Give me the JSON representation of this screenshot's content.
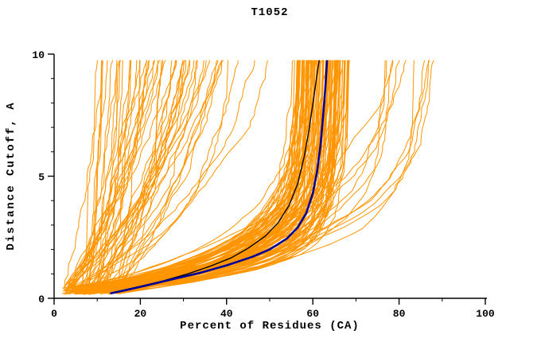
{
  "chart_data": {
    "type": "line",
    "title": "T1052",
    "xlabel": "Percent of Residues (CA)",
    "ylabel": "Distance Cutoff, A",
    "xlim": [
      0,
      100
    ],
    "ylim": [
      0,
      10
    ],
    "grid": false,
    "legend": "none",
    "x_ticks": {
      "major": [
        0,
        20,
        40,
        60,
        80,
        100
      ],
      "major_labels": [
        "0",
        "20",
        "40",
        "60",
        "80",
        "100"
      ],
      "minor_step": 10
    },
    "y_ticks": {
      "major": [
        0,
        5,
        10
      ],
      "major_labels": [
        "0",
        "5",
        "10"
      ],
      "minor_step": 1
    },
    "colors": {
      "axis": "#000000",
      "ensemble": "#FF9500",
      "highlight_navy": "#000099",
      "highlight_black": "#000000",
      "background": "#ffffff"
    },
    "ensemble": {
      "label": "predicted-model-curves",
      "count": 170,
      "seed": 1052,
      "line_width": 1,
      "groups": [
        {
          "frac": 0.56,
          "final_range": [
            55,
            68
          ],
          "tau_range": [
            0.7,
            2.0
          ]
        },
        {
          "frac": 0.34,
          "final_range": [
            12,
            58
          ],
          "tau_range": [
            2.5,
            13.0
          ]
        },
        {
          "frac": 0.1,
          "final_range": [
            66,
            90
          ],
          "tau_range": [
            1.2,
            3.8
          ]
        }
      ],
      "start_range": [
        2,
        15
      ],
      "y_start_range": [
        0.15,
        0.45
      ],
      "y_end": 9.75
    },
    "series": [
      {
        "name": "highlight-curve-black",
        "color": "#000000",
        "width": 1.4,
        "points": [
          [
            14,
            0.25
          ],
          [
            19,
            0.45
          ],
          [
            25,
            0.7
          ],
          [
            31,
            1.0
          ],
          [
            36,
            1.3
          ],
          [
            41,
            1.65
          ],
          [
            45,
            2.05
          ],
          [
            49,
            2.55
          ],
          [
            52,
            3.1
          ],
          [
            54.5,
            3.8
          ],
          [
            56.5,
            4.7
          ],
          [
            58,
            5.8
          ],
          [
            59.2,
            7.0
          ],
          [
            60.2,
            8.2
          ],
          [
            61,
            9.2
          ],
          [
            61.5,
            9.75
          ]
        ]
      },
      {
        "name": "highlight-curve-navy",
        "color": "#000099",
        "width": 2.6,
        "points": [
          [
            13,
            0.2
          ],
          [
            17,
            0.35
          ],
          [
            22,
            0.55
          ],
          [
            28,
            0.8
          ],
          [
            34,
            1.05
          ],
          [
            40,
            1.35
          ],
          [
            46,
            1.7
          ],
          [
            50,
            2.0
          ],
          [
            54,
            2.45
          ],
          [
            56.5,
            2.9
          ],
          [
            58.5,
            3.5
          ],
          [
            60,
            4.3
          ],
          [
            61,
            5.2
          ],
          [
            61.8,
            6.3
          ],
          [
            62.4,
            7.5
          ],
          [
            62.9,
            8.6
          ],
          [
            63.3,
            9.75
          ]
        ]
      }
    ]
  }
}
